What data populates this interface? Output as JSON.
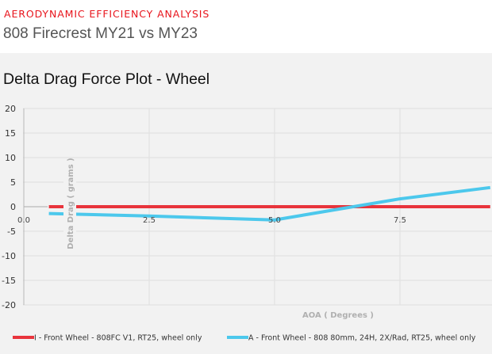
{
  "header": {
    "kicker": "AERODYNAMIC EFFICIENCY ANALYSIS",
    "subtitle": "808 Firecrest MY21 vs MY23"
  },
  "colors": {
    "kicker": "#e8141c",
    "series_red": "#e8343c",
    "series_blue": "#4cc8ec",
    "panel_bg": "#f2f2f2",
    "grid": "#e2e2e2"
  },
  "chart_data": {
    "type": "line",
    "title": "Delta Drag Force Plot - Wheel",
    "xlabel": "AOA ( Degrees )",
    "ylabel": "Delta Drag ( grams )",
    "xlim": [
      0,
      9.3
    ],
    "ylim": [
      -20,
      20
    ],
    "yticks": [
      20,
      15,
      10,
      5,
      0,
      -5,
      -10,
      -15,
      -20
    ],
    "xticks": [
      0.0,
      2.5,
      5.0,
      7.5
    ],
    "xtick_labels": [
      "0.0",
      "2.5",
      "5.0",
      "7.5"
    ],
    "ytick_labels": [
      "20",
      "15",
      "10",
      "5",
      "0",
      "-5",
      "-10",
      "-15",
      "-20"
    ],
    "grid": true,
    "legend_position": "bottom",
    "series": [
      {
        "name": "I - Front Wheel - 808FC V1, RT25, wheel only",
        "color": "#e8343c",
        "x": [
          0.5,
          2.5,
          5.0,
          7.5,
          9.3
        ],
        "y": [
          0,
          0,
          0,
          0,
          0
        ]
      },
      {
        "name": "A - Front Wheel - 808 80mm, 24H, 2X/Rad, RT25, wheel only",
        "color": "#4cc8ec",
        "x": [
          0.5,
          2.5,
          5.0,
          7.5,
          9.3
        ],
        "y": [
          -1.4,
          -1.9,
          -2.7,
          1.6,
          3.9
        ]
      }
    ]
  }
}
